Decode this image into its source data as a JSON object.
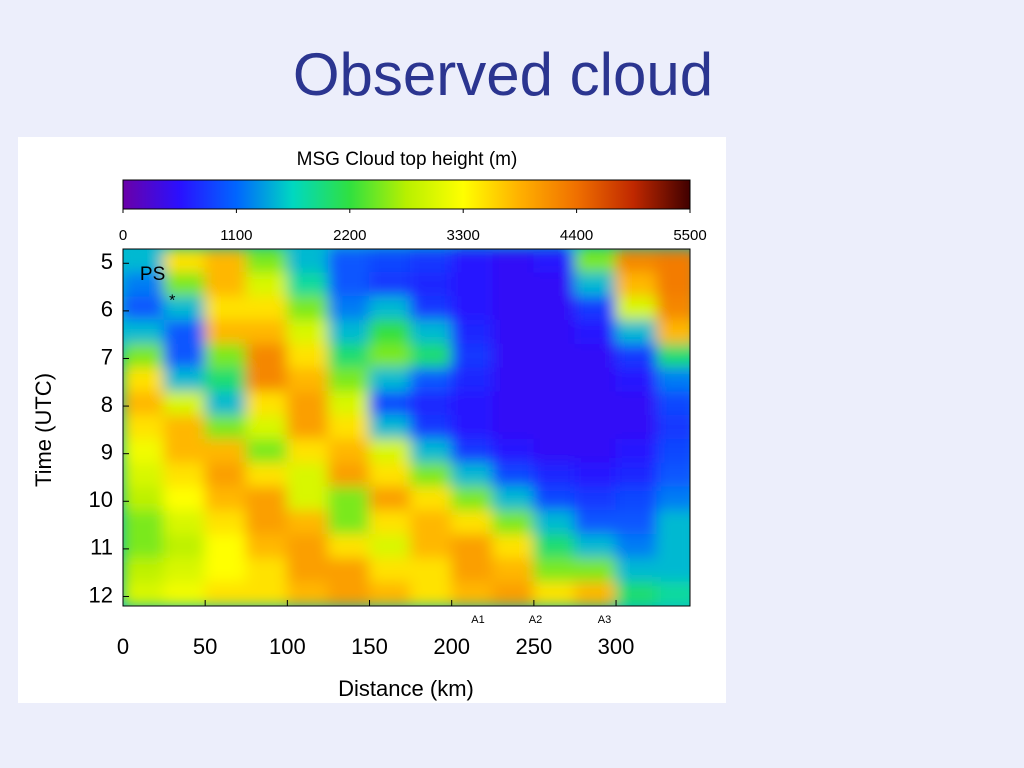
{
  "title": "Observed cloud",
  "chart_data": {
    "type": "heatmap",
    "colorbar_title": "MSG Cloud top height (m)",
    "clim": [
      0,
      5500
    ],
    "cticks": [
      0,
      1100,
      2200,
      3300,
      4400,
      5500
    ],
    "colormap": [
      "#6a00a8",
      "#2a10ff",
      "#0066ff",
      "#00d8c0",
      "#30e040",
      "#b8f000",
      "#ffff00",
      "#ffb000",
      "#f07000",
      "#c02800",
      "#400000"
    ],
    "xlabel": "Distance (km)",
    "ylabel": "Time (UTC)",
    "xlim": [
      0,
      345
    ],
    "ylim": [
      4.7,
      12.2
    ],
    "xticks": [
      0,
      50,
      100,
      150,
      200,
      250,
      300
    ],
    "yticks": [
      5,
      6,
      7,
      8,
      9,
      10,
      11,
      12
    ],
    "y_inverted": true,
    "x": [
      12.5,
      37.5,
      62.5,
      87.5,
      112.5,
      137.5,
      162.5,
      187.5,
      212.5,
      237.5,
      262.5,
      287.5,
      312.5,
      337.5
    ],
    "y": [
      4.95,
      5.45,
      5.95,
      6.45,
      6.95,
      7.45,
      7.95,
      8.45,
      8.95,
      9.45,
      9.95,
      10.45,
      10.95,
      11.45,
      11.95
    ],
    "z": [
      [
        1500,
        3500,
        3800,
        2500,
        1500,
        1000,
        900,
        800,
        600,
        500,
        600,
        2500,
        4200,
        4300
      ],
      [
        1200,
        2500,
        3800,
        3000,
        1800,
        1000,
        800,
        700,
        600,
        500,
        500,
        1500,
        3800,
        4300
      ],
      [
        1000,
        1500,
        3500,
        3500,
        2500,
        1200,
        1500,
        800,
        600,
        500,
        500,
        800,
        3000,
        4200
      ],
      [
        1500,
        1000,
        3800,
        3800,
        3000,
        1500,
        2200,
        1500,
        700,
        500,
        500,
        600,
        1500,
        3800
      ],
      [
        2500,
        1000,
        2500,
        4200,
        3500,
        2000,
        2500,
        2000,
        800,
        500,
        500,
        500,
        800,
        2000
      ],
      [
        3500,
        1500,
        2000,
        4200,
        3800,
        2500,
        1500,
        1000,
        700,
        500,
        500,
        500,
        600,
        1200
      ],
      [
        3800,
        3000,
        1500,
        3500,
        4000,
        3000,
        900,
        700,
        600,
        500,
        500,
        500,
        500,
        900
      ],
      [
        3500,
        3800,
        2500,
        3000,
        4000,
        3500,
        1500,
        800,
        600,
        500,
        500,
        500,
        500,
        800
      ],
      [
        3200,
        3800,
        3800,
        2500,
        3500,
        3800,
        3000,
        1500,
        800,
        600,
        500,
        500,
        600,
        900
      ],
      [
        3000,
        3500,
        4000,
        3500,
        3000,
        4000,
        3500,
        2500,
        1500,
        900,
        700,
        600,
        700,
        1000
      ],
      [
        2800,
        3300,
        3800,
        4000,
        3000,
        2500,
        4000,
        3500,
        2500,
        1500,
        900,
        800,
        900,
        1200
      ],
      [
        2500,
        3000,
        3500,
        4000,
        3800,
        2500,
        3500,
        3800,
        3500,
        2500,
        1500,
        1000,
        1000,
        1500
      ],
      [
        2500,
        2800,
        3300,
        3800,
        4000,
        3500,
        3000,
        3800,
        4000,
        3500,
        2000,
        1500,
        1200,
        1500
      ],
      [
        2800,
        3000,
        3300,
        3500,
        4000,
        4000,
        3500,
        3500,
        4000,
        3800,
        2500,
        2500,
        1500,
        1500
      ],
      [
        3000,
        3200,
        3500,
        3500,
        3800,
        4000,
        3800,
        3500,
        3800,
        4000,
        3500,
        3800,
        2000,
        1800
      ]
    ],
    "annotations": [
      {
        "text": "PS",
        "x": 18,
        "y": 5.25
      },
      {
        "text": "*",
        "x": 30,
        "y": 5.8
      },
      {
        "text": "A1",
        "x": 216,
        "y": 12.5
      },
      {
        "text": "A2",
        "x": 251,
        "y": 12.5
      },
      {
        "text": "A3",
        "x": 293,
        "y": 12.5
      }
    ]
  }
}
